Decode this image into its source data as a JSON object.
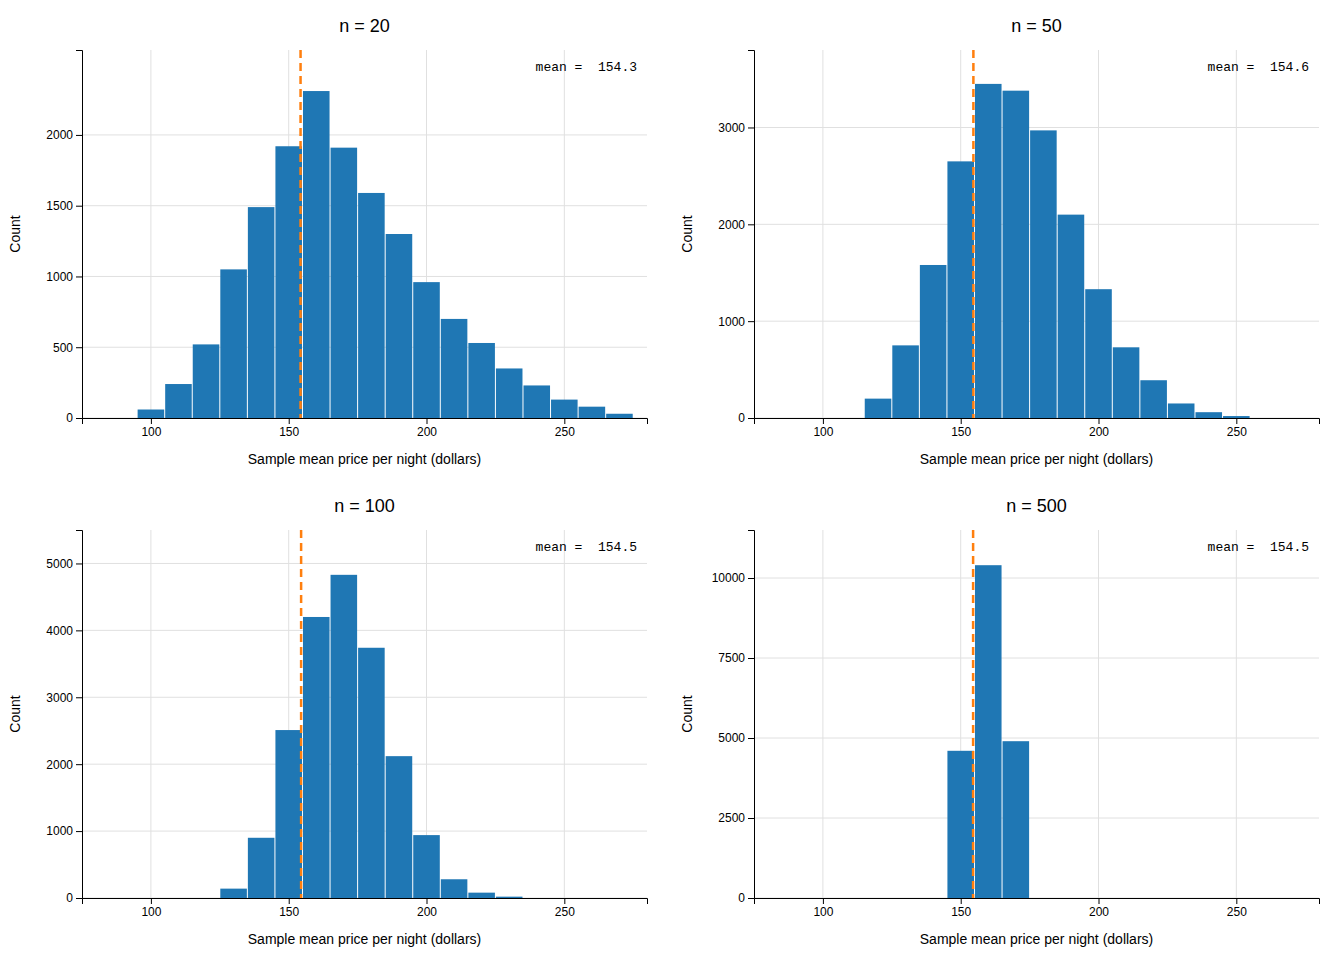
{
  "chart_data": [
    {
      "type": "histogram",
      "title": "n = 20",
      "x_label": "Sample mean price per night (dollars)",
      "y_label": "Count",
      "bins": [
        75,
        85,
        95,
        105,
        115,
        125,
        135,
        145,
        155,
        165,
        175,
        185,
        195,
        205,
        215,
        225,
        235,
        245,
        255,
        265,
        275
      ],
      "values": [
        0,
        0,
        60,
        240,
        520,
        1050,
        1490,
        1920,
        2310,
        1910,
        1590,
        1300,
        960,
        700,
        530,
        350,
        230,
        130,
        80,
        30
      ],
      "mean": 154.3,
      "annotation": "mean =  154.3",
      "xlim": [
        75,
        280
      ],
      "xticks": [
        100,
        150,
        200,
        250
      ],
      "ylim": [
        0,
        2600
      ],
      "yticks": [
        0,
        500,
        1000,
        1500,
        2000
      ],
      "grid": true
    },
    {
      "type": "histogram",
      "title": "n = 50",
      "x_label": "Sample mean price per night (dollars)",
      "y_label": "Count",
      "bins": [
        75,
        85,
        95,
        105,
        115,
        125,
        135,
        145,
        155,
        165,
        175,
        185,
        195,
        205,
        215,
        225,
        235,
        245,
        255,
        265,
        275
      ],
      "values": [
        0,
        0,
        0,
        0,
        200,
        750,
        1580,
        2650,
        3450,
        3380,
        2970,
        2100,
        1330,
        730,
        390,
        150,
        60,
        20,
        0,
        0
      ],
      "mean": 154.6,
      "annotation": "mean =  154.6",
      "xlim": [
        75,
        280
      ],
      "xticks": [
        100,
        150,
        200,
        250
      ],
      "ylim": [
        0,
        3800
      ],
      "yticks": [
        0,
        1000,
        2000,
        3000
      ],
      "grid": true
    },
    {
      "type": "histogram",
      "title": "n = 100",
      "x_label": "Sample mean price per night (dollars)",
      "y_label": "Count",
      "bins": [
        75,
        85,
        95,
        105,
        115,
        125,
        135,
        145,
        155,
        165,
        175,
        185,
        195,
        205,
        215,
        225,
        235,
        245,
        255,
        265,
        275
      ],
      "values": [
        0,
        0,
        0,
        0,
        0,
        140,
        900,
        2510,
        4200,
        4830,
        3740,
        2120,
        940,
        280,
        80,
        20,
        0,
        0,
        0,
        0
      ],
      "mean": 154.5,
      "annotation": "mean =  154.5",
      "xlim": [
        75,
        280
      ],
      "xticks": [
        100,
        150,
        200,
        250
      ],
      "ylim": [
        0,
        5500
      ],
      "yticks": [
        0,
        1000,
        2000,
        3000,
        4000,
        5000
      ],
      "grid": true
    },
    {
      "type": "histogram",
      "title": "n = 500",
      "x_label": "Sample mean price per night (dollars)",
      "y_label": "Count",
      "bins": [
        75,
        85,
        95,
        105,
        115,
        125,
        135,
        145,
        155,
        165,
        175,
        185,
        195,
        205,
        215,
        225,
        235,
        245,
        255,
        265,
        275
      ],
      "values": [
        0,
        0,
        0,
        0,
        0,
        0,
        0,
        4600,
        10400,
        4900,
        0,
        0,
        0,
        0,
        0,
        0,
        0,
        0,
        0,
        0
      ],
      "mean": 154.5,
      "annotation": "mean =  154.5",
      "xlim": [
        75,
        280
      ],
      "xticks": [
        100,
        150,
        200,
        250
      ],
      "ylim": [
        0,
        11500
      ],
      "yticks": [
        0,
        2500,
        5000,
        7500,
        10000
      ],
      "grid": true
    }
  ]
}
